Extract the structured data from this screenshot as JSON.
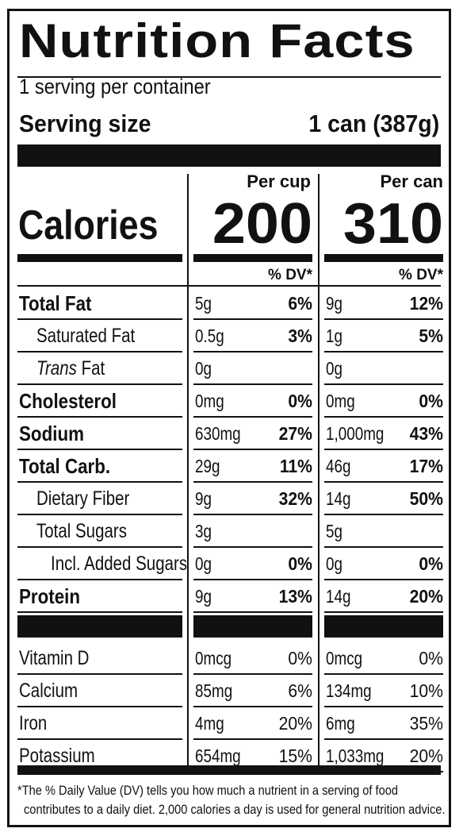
{
  "label": {
    "title": "Nutrition Facts",
    "servings_per_container": "1 serving per container",
    "serving_size_label": "Serving size",
    "serving_size_value": "1 can (387g)",
    "calories_label": "Calories",
    "columns": [
      {
        "header": "Per cup",
        "calories": "200",
        "dv_header": "% DV*"
      },
      {
        "header": "Per can",
        "calories": "310",
        "dv_header": "% DV*"
      }
    ],
    "nutrients": [
      {
        "name": "Total Fat",
        "style": "bold",
        "indent": 0,
        "cup_amount": "5g",
        "cup_dv": "6%",
        "can_amount": "9g",
        "can_dv": "12%"
      },
      {
        "name": "Saturated Fat",
        "style": "normal",
        "indent": 1,
        "cup_amount": "0.5g",
        "cup_dv": "3%",
        "can_amount": "1g",
        "can_dv": "5%"
      },
      {
        "name_italic": "Trans",
        "name": " Fat",
        "style": "normal",
        "indent": 1,
        "cup_amount": "0g",
        "cup_dv": "",
        "can_amount": "0g",
        "can_dv": ""
      },
      {
        "name": "Cholesterol",
        "style": "bold",
        "indent": 0,
        "cup_amount": "0mg",
        "cup_dv": "0%",
        "can_amount": "0mg",
        "can_dv": "0%"
      },
      {
        "name": "Sodium",
        "style": "bold",
        "indent": 0,
        "cup_amount": "630mg",
        "cup_dv": "27%",
        "can_amount": "1,000mg",
        "can_dv": "43%"
      },
      {
        "name": "Total Carb.",
        "style": "bold",
        "indent": 0,
        "cup_amount": "29g",
        "cup_dv": "11%",
        "can_amount": "46g",
        "can_dv": "17%"
      },
      {
        "name": "Dietary Fiber",
        "style": "normal",
        "indent": 1,
        "cup_amount": "9g",
        "cup_dv": "32%",
        "can_amount": "14g",
        "can_dv": "50%"
      },
      {
        "name": "Total Sugars",
        "style": "normal",
        "indent": 1,
        "cup_amount": "3g",
        "cup_dv": "",
        "can_amount": "5g",
        "can_dv": ""
      },
      {
        "name": "Incl. Added Sugars",
        "style": "normal",
        "indent": 2,
        "cup_amount": "0g",
        "cup_dv": "0%",
        "can_amount": "0g",
        "can_dv": "0%"
      },
      {
        "name": "Protein",
        "style": "bold",
        "indent": 0,
        "cup_amount": "9g",
        "cup_dv": "13%",
        "can_amount": "14g",
        "can_dv": "20%"
      }
    ],
    "vitamins": [
      {
        "name": "Vitamin D",
        "cup_amount": "0mcg",
        "cup_dv": "0%",
        "can_amount": "0mcg",
        "can_dv": "0%"
      },
      {
        "name": "Calcium",
        "cup_amount": "85mg",
        "cup_dv": "6%",
        "can_amount": "134mg",
        "can_dv": "10%"
      },
      {
        "name": "Iron",
        "cup_amount": "4mg",
        "cup_dv": "20%",
        "can_amount": "6mg",
        "can_dv": "35%"
      },
      {
        "name": "Potassium",
        "cup_amount": "654mg",
        "cup_dv": "15%",
        "can_amount": "1,033mg",
        "can_dv": "20%"
      }
    ],
    "footnote_line1": "*The % Daily Value (DV) tells you how much a nutrient in a serving of food",
    "footnote_line2": "contributes to a daily diet. 2,000 calories a day is used for general nutrition advice."
  }
}
